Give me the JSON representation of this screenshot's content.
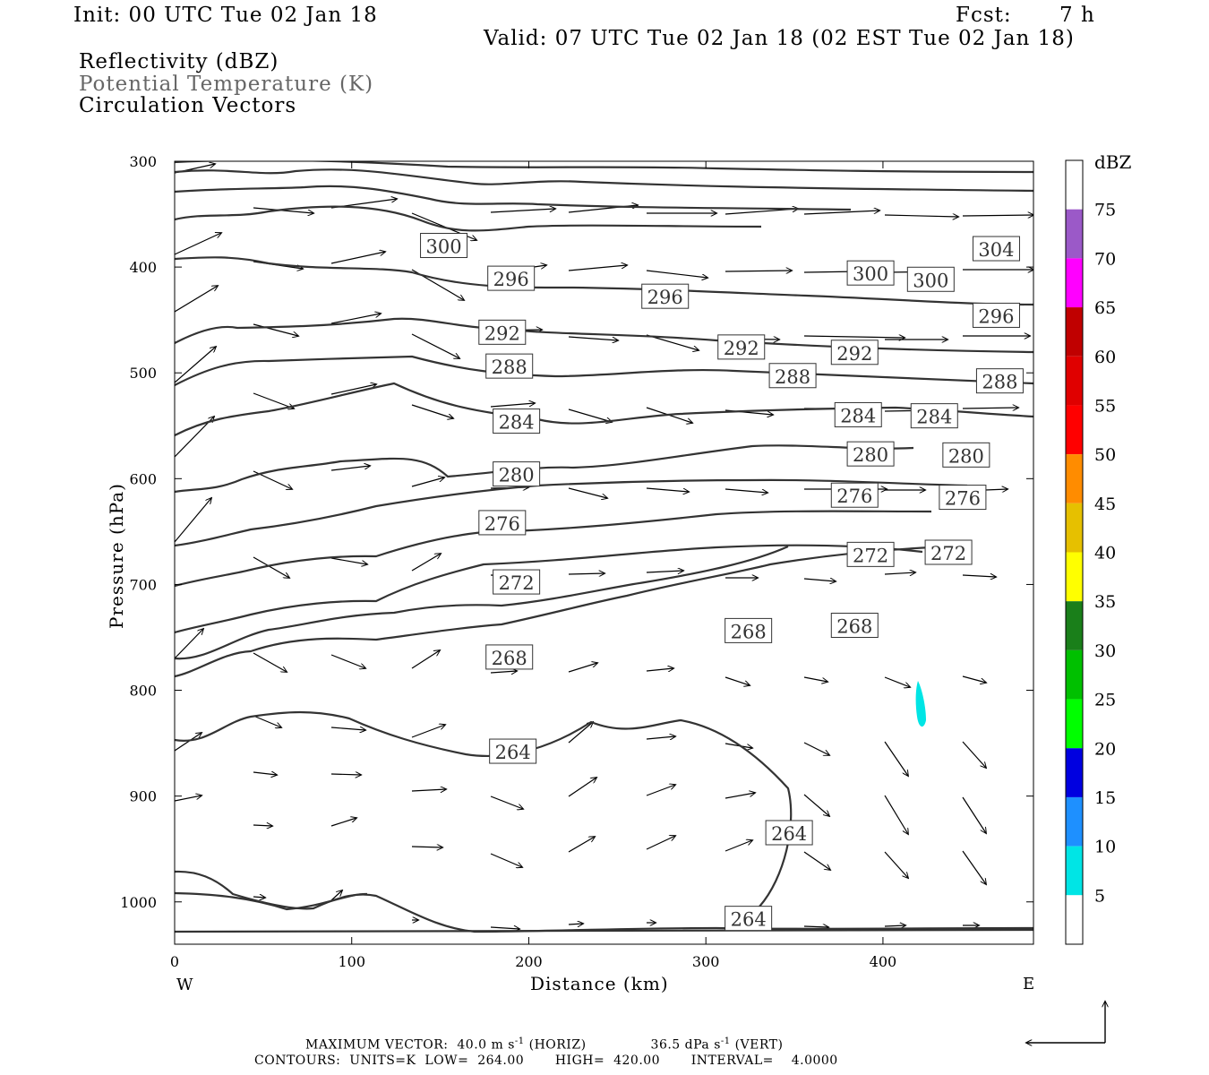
{
  "header": {
    "init": "Init: 00 UTC Tue 02 Jan 18",
    "fcst_label": "Fcst:",
    "fcst_value": "7 h",
    "valid": "Valid: 07 UTC Tue 02 Jan 18 (02 EST Tue 02 Jan 18)",
    "field1": "Reflectivity (dBZ)",
    "field2": "Potential Temperature (K)",
    "field3": "Circulation Vectors"
  },
  "chart_data": {
    "type": "cross-section",
    "xlabel": "Distance (km)",
    "ylabel": "Pressure (hPa)",
    "xlim": [
      0,
      485
    ],
    "ylim": [
      1040,
      300
    ],
    "x_ticks": [
      0,
      100,
      200,
      300,
      400
    ],
    "y_ticks": [
      300,
      400,
      500,
      600,
      700,
      800,
      900,
      1000
    ],
    "x_end_labels": {
      "left": "W",
      "right": "E"
    },
    "theta_contour_labels": [
      {
        "value": "300",
        "x": 152,
        "p": 380
      },
      {
        "value": "304",
        "x": 464,
        "p": 383
      },
      {
        "value": "296",
        "x": 190,
        "p": 411
      },
      {
        "value": "296",
        "x": 277,
        "p": 428
      },
      {
        "value": "300",
        "x": 393,
        "p": 406
      },
      {
        "value": "300",
        "x": 427,
        "p": 412
      },
      {
        "value": "296",
        "x": 464,
        "p": 446
      },
      {
        "value": "292",
        "x": 185,
        "p": 462
      },
      {
        "value": "292",
        "x": 320,
        "p": 476
      },
      {
        "value": "292",
        "x": 384,
        "p": 481
      },
      {
        "value": "288",
        "x": 189,
        "p": 494
      },
      {
        "value": "288",
        "x": 349,
        "p": 503
      },
      {
        "value": "288",
        "x": 466,
        "p": 508
      },
      {
        "value": "284",
        "x": 193,
        "p": 546
      },
      {
        "value": "284",
        "x": 386,
        "p": 540
      },
      {
        "value": "284",
        "x": 429,
        "p": 541
      },
      {
        "value": "280",
        "x": 393,
        "p": 577
      },
      {
        "value": "280",
        "x": 447,
        "p": 578
      },
      {
        "value": "280",
        "x": 193,
        "p": 596
      },
      {
        "value": "276",
        "x": 185,
        "p": 642
      },
      {
        "value": "276",
        "x": 384,
        "p": 616
      },
      {
        "value": "276",
        "x": 445,
        "p": 618
      },
      {
        "value": "272",
        "x": 393,
        "p": 672
      },
      {
        "value": "272",
        "x": 437,
        "p": 670
      },
      {
        "value": "272",
        "x": 193,
        "p": 698
      },
      {
        "value": "268",
        "x": 324,
        "p": 744
      },
      {
        "value": "268",
        "x": 384,
        "p": 739
      },
      {
        "value": "268",
        "x": 189,
        "p": 769
      },
      {
        "value": "264",
        "x": 191,
        "p": 858
      },
      {
        "value": "264",
        "x": 347,
        "p": 935
      },
      {
        "value": "264",
        "x": 324,
        "p": 1016
      }
    ],
    "colorbar": {
      "title": "dBZ",
      "labels": [
        "75",
        "70",
        "65",
        "60",
        "55",
        "50",
        "45",
        "40",
        "35",
        "30",
        "25",
        "20",
        "15",
        "10",
        "5"
      ],
      "colors_top_to_bottom": [
        "#ffffff",
        "#9b59c8",
        "#ff00ff",
        "#c00000",
        "#e00000",
        "#ff0000",
        "#ff8c00",
        "#e6c000",
        "#ffff00",
        "#1a7f1a",
        "#00c000",
        "#00ff00",
        "#0000e0",
        "#1e90ff",
        "#00e5e5",
        "#ffffff"
      ]
    },
    "reflectivity_echo_color": "#00e5e5",
    "contour_color": "#333333"
  },
  "footer": {
    "line1_a": "MAXIMUM VECTOR:  40.0 m s",
    "line1_b": " (HORIZ)",
    "line1_c": "36.5 dPa s",
    "line1_d": " (VERT)",
    "sup": "-1",
    "line2": "CONTOURS:  UNITS=K  LOW=  264.00       HIGH=  420.00       INTERVAL=    4.0000"
  }
}
